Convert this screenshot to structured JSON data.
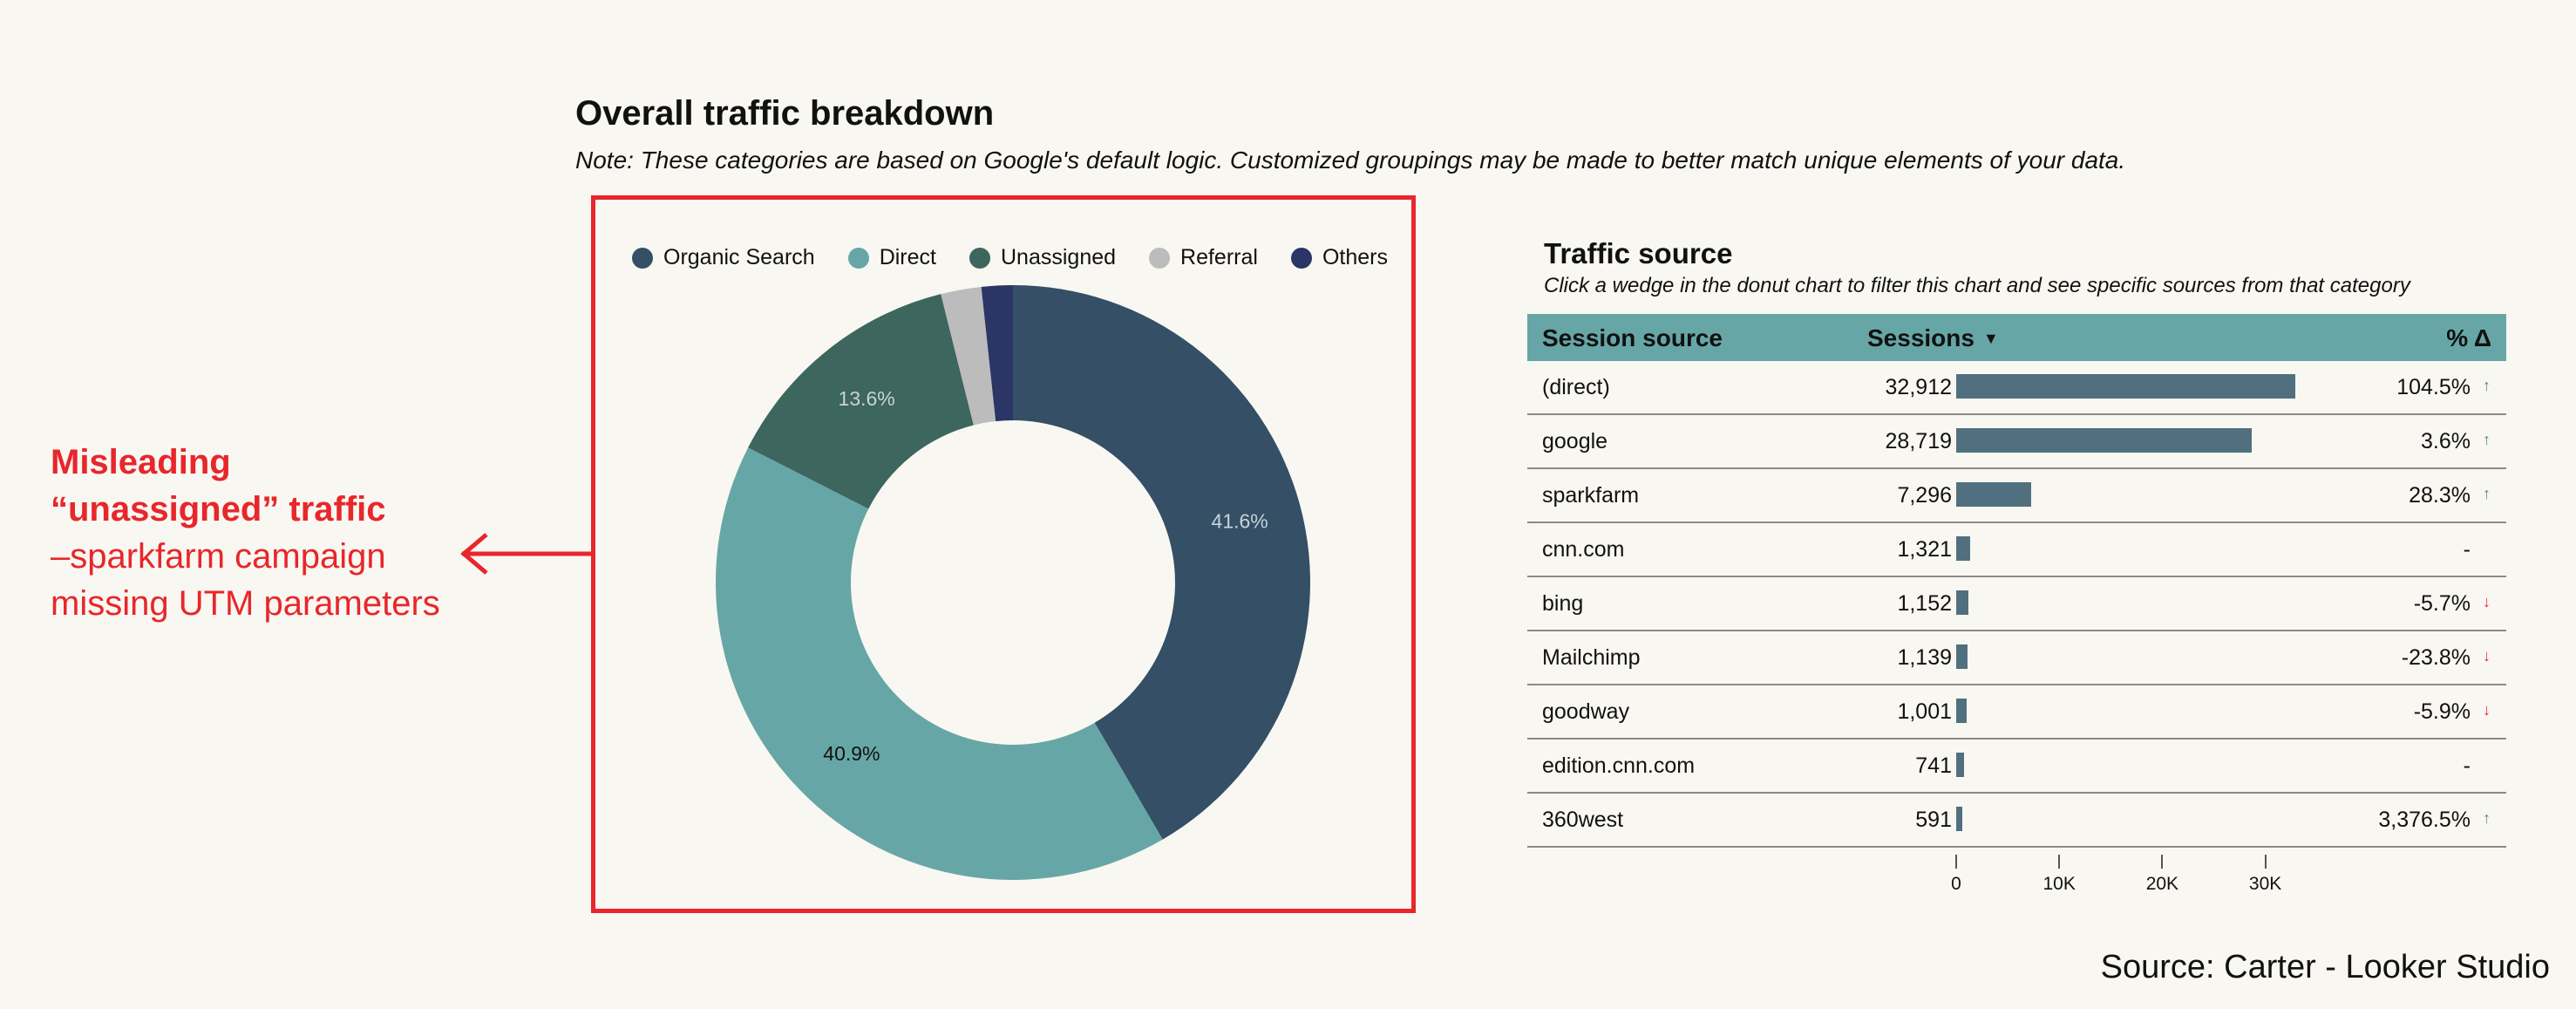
{
  "header": {
    "title": "Overall traffic breakdown",
    "note": "Note: These categories are based on Google's default logic. Customized groupings may be made to better match unique elements of your data."
  },
  "callout": {
    "line_strong": "Misleading “unassigned” traffic",
    "line_body": "–sparkfarm campaign missing UTM parameters",
    "color": "#e8262b"
  },
  "chart_data": [
    {
      "type": "pie",
      "variant": "donut",
      "legend_position": "top",
      "categories": [
        "Organic Search",
        "Direct",
        "Unassigned",
        "Referral",
        "Others"
      ],
      "values": [
        41.6,
        40.9,
        13.6,
        2.2,
        1.7
      ],
      "data_labels": [
        "41.6%",
        "40.9%",
        "13.6%",
        "",
        ""
      ],
      "colors": [
        "#344f66",
        "#67a6a6",
        "#3c665e",
        "#bcbcbc",
        "#2b3566"
      ]
    },
    {
      "type": "table",
      "title": "Traffic source",
      "subtitle": "Click a wedge in the donut chart to filter this chart and see specific sources from that category",
      "columns": [
        "Session source",
        "Sessions",
        "% Δ"
      ],
      "sort_indicator": "▼",
      "rows": [
        {
          "source": "(direct)",
          "sessions": 32912,
          "sessions_label": "32,912",
          "delta": "104.5%",
          "trend": "up"
        },
        {
          "source": "google",
          "sessions": 28719,
          "sessions_label": "28,719",
          "delta": "3.6%",
          "trend": "up"
        },
        {
          "source": "sparkfarm",
          "sessions": 7296,
          "sessions_label": "7,296",
          "delta": "28.3%",
          "trend": "up"
        },
        {
          "source": "cnn.com",
          "sessions": 1321,
          "sessions_label": "1,321",
          "delta": "-",
          "trend": "none"
        },
        {
          "source": "bing",
          "sessions": 1152,
          "sessions_label": "1,152",
          "delta": "-5.7%",
          "trend": "down"
        },
        {
          "source": "Mailchimp",
          "sessions": 1139,
          "sessions_label": "1,139",
          "delta": "-23.8%",
          "trend": "down"
        },
        {
          "source": "goodway",
          "sessions": 1001,
          "sessions_label": "1,001",
          "delta": "-5.9%",
          "trend": "down"
        },
        {
          "source": "edition.cnn.com",
          "sessions": 741,
          "sessions_label": "741",
          "delta": "-",
          "trend": "none"
        },
        {
          "source": "360west",
          "sessions": 591,
          "sessions_label": "591",
          "delta": "3,376.5%",
          "trend": "up"
        }
      ],
      "bar_axis": {
        "min": 0,
        "max": 40000,
        "ticks": [
          0,
          10000,
          20000,
          30000
        ],
        "tick_labels": [
          "0",
          "10K",
          "20K",
          "30K"
        ]
      },
      "bar_color": "#51707f",
      "header_color": "#67a6a6"
    }
  ],
  "footer": {
    "source": "Source: Carter - Looker Studio"
  }
}
